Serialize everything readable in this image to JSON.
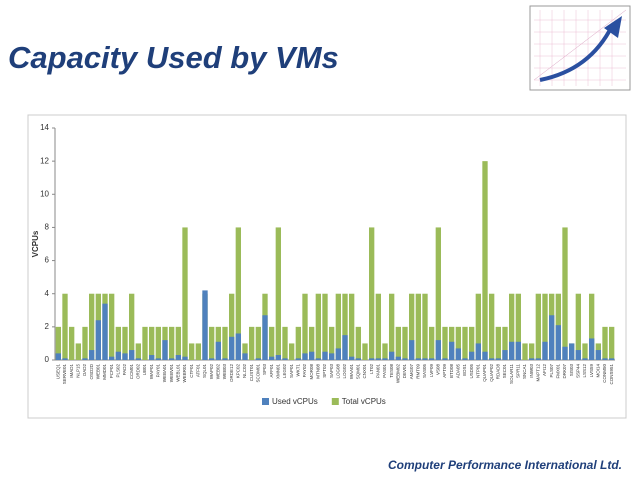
{
  "title": "Capacity Used by VMs",
  "footer": "Computer Performance International Ltd.",
  "chart_data": {
    "type": "bar",
    "ylabel": "VCPUs",
    "categories": [
      "USEQ1",
      "SERVE01",
      "IMAD1",
      "NLP15",
      "OAD2",
      "OSD2D",
      "WEB01",
      "MMD01",
      "PCP01",
      "PLS02",
      "PAD2",
      "CCM01",
      "ORD02",
      "UB01",
      "WAP01",
      "PAY01",
      "WEBA01",
      "WEBV01",
      "WEBL01",
      "WEBR01",
      "CTF01",
      "ATF01",
      "SQL01",
      "WAP02",
      "WEB02",
      "WEB03",
      "ORDE12",
      "KPC02",
      "NLC02",
      "CUST01",
      "SCOM01",
      "SP03",
      "AFF01",
      "XMN01",
      "LEG02",
      "SAP01",
      "WKT1",
      "PAY02",
      "MOR08",
      "MTN08",
      "SPT02",
      "SAP03",
      "LOG08",
      "LOG02",
      "WAA01",
      "SQM01",
      "CNX01",
      "LT02",
      "PAN01",
      "PAS01",
      "TES08",
      "WEBM02",
      "DEV01",
      "AMG07",
      "RMT09",
      "SAS05",
      "LVF09",
      "VS08",
      "APT09",
      "BTD08",
      "ADA05",
      "EDS1",
      "USD05",
      "NTP01",
      "QUAP01",
      "QUAP02",
      "RDAD8",
      "SEC01",
      "SOLAR11",
      "SPR11",
      "SNCA1",
      "INW03",
      "MAPT12",
      "AFI12",
      "PLS07",
      "FMX01",
      "DRK07",
      "SIS03",
      "SSP44",
      "LSS12",
      "LVS59",
      "MOI14",
      "CONM50",
      "CONS951"
    ],
    "series": [
      {
        "name": "Total vCPUs",
        "color": "#9bbb59",
        "values": [
          2,
          4,
          2,
          1,
          2,
          4,
          4,
          4,
          4,
          2,
          2,
          4,
          1,
          2,
          2,
          2,
          2,
          2,
          2,
          8,
          1,
          1,
          4,
          2,
          2,
          2,
          4,
          8,
          1,
          2,
          2,
          4,
          2,
          8,
          2,
          1,
          2,
          4,
          2,
          4,
          4,
          2,
          4,
          4,
          4,
          2,
          1,
          8,
          4,
          1,
          4,
          2,
          2,
          4,
          4,
          4,
          2,
          8,
          2,
          2,
          2,
          2,
          2,
          4,
          12,
          4,
          2,
          2,
          4,
          4,
          1,
          1,
          4,
          4,
          4,
          4,
          8,
          1,
          4,
          1,
          4,
          1,
          2,
          2
        ]
      },
      {
        "name": "Used vCPUs",
        "color": "#4f81bd",
        "values": [
          0.4,
          0.1,
          0,
          0,
          0.1,
          0.6,
          2.4,
          3.4,
          0.2,
          0.5,
          0.4,
          0.6,
          0.1,
          0,
          0.3,
          0.1,
          1.2,
          0.1,
          0.3,
          0.2,
          0,
          0,
          4.2,
          0.1,
          1.1,
          0.1,
          1.4,
          1.6,
          0.4,
          0,
          0.1,
          2.7,
          0.2,
          0.3,
          0.1,
          0,
          0.1,
          0.4,
          0.5,
          0.1,
          0.5,
          0.4,
          0.7,
          1.5,
          0.2,
          0.1,
          0,
          0.1,
          0.1,
          0.1,
          0.5,
          0.2,
          0.1,
          1.2,
          0.1,
          0.1,
          0.1,
          1.2,
          0.1,
          1.1,
          0.7,
          0.1,
          0.5,
          1.0,
          0.5,
          0.1,
          0.1,
          0.6,
          1.1,
          1.1,
          0,
          0.1,
          0.1,
          1.1,
          2.7,
          2.1,
          0.8,
          1.0,
          0.6,
          0.1,
          1.3,
          0.6,
          0.1,
          0.1
        ]
      }
    ],
    "legend_order": [
      1,
      0
    ],
    "ylim": [
      0,
      14
    ],
    "yticks": [
      0,
      2,
      4,
      6,
      8,
      10,
      12,
      14
    ],
    "grid": false
  }
}
